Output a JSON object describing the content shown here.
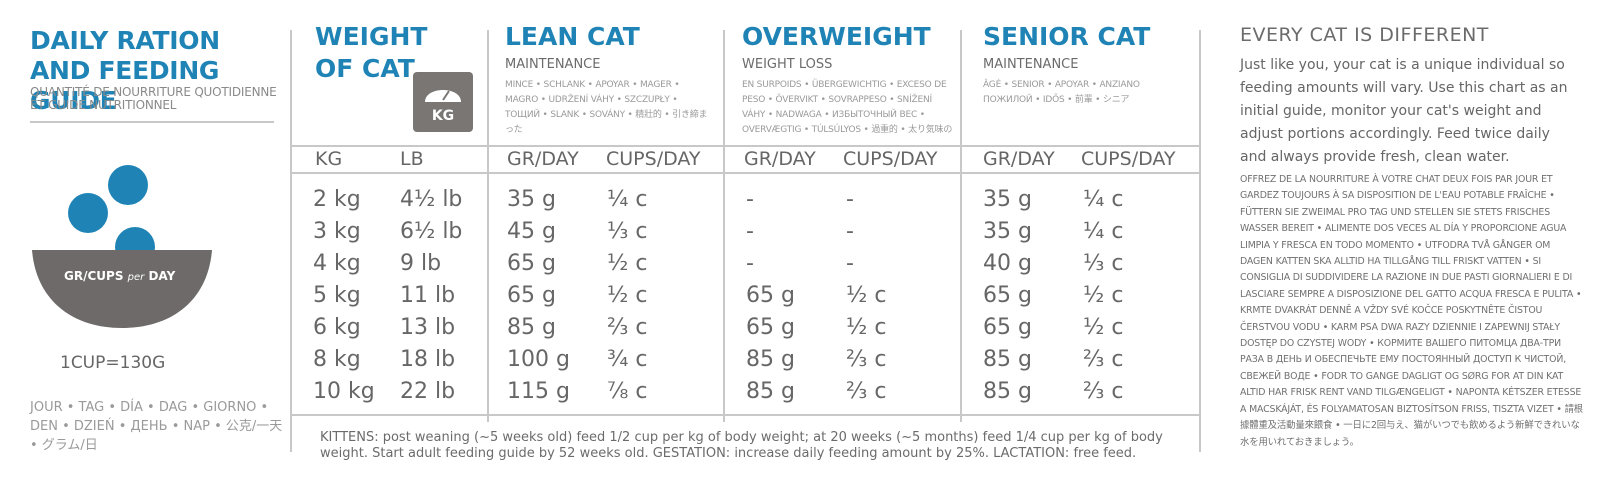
{
  "left": {
    "title": "DAILY RATION AND FEEDING GUIDE",
    "subtitle": "QUANTITÉ DE NOURRITURE QUOTIDIENNE ET GUIDE NUTRITIONNEL",
    "bowl_label": "GR/CUPS",
    "bowl_label_per": "per",
    "bowl_label_day": "DAY",
    "cup_note": "1CUP=130G",
    "days": "JOUR • TAG • DÍA • DAG • GIORNO • DEN • DZIEŃ • ДЕНЬ • NAP • 公克/一天 • グラム/日"
  },
  "weight": {
    "title_line1": "WEIGHT",
    "title_line2": "OF CAT",
    "scale_label": "KG",
    "unit_kg": "KG",
    "unit_lb": "LB"
  },
  "lean": {
    "title": "LEAN CAT",
    "sub": "MAINTENANCE",
    "langs": "MINCE • SCHLANK • APOYAR • MAGER • MAGRO • UDRŽENÍ VÁHY • SZCZUPŁY • ТОЩИЙ • SLANK • SOVÁNY • 精壯的 • 引き締まった",
    "unit_gr": "GR/DAY",
    "unit_cups": "CUPS/DAY"
  },
  "overweight": {
    "title": "OVERWEIGHT",
    "sub": "WEIGHT LOSS",
    "langs": "EN SURPOIDS • ÜBERGEWICHTIG • EXCESO DE PESO • ÖVERVIKT • SOVRAPPESO • SNÍŽENÍ VÁHY • NADWAGA • ИЗБЫТОЧНЫЙ ВЕС • OVERVÆGTIG • TÚLSÚLYOS • 過重的 • 太り気味の",
    "unit_gr": "GR/DAY",
    "unit_cups": "CUPS/DAY"
  },
  "senior": {
    "title": "SENIOR CAT",
    "sub": "MAINTENANCE",
    "langs": "ÂGÉ • SENIOR • APOYAR • ANZIANO ПОЖИЛОЙ • IDŐS • 前輩 • シニア",
    "unit_gr": "GR/DAY",
    "unit_cups": "CUPS/DAY"
  },
  "rows": [
    {
      "kg": "2 kg",
      "lb": "4½ lb",
      "lean_g": "35 g",
      "lean_c": "¼ c",
      "over_g": "-",
      "over_c": "-",
      "senior_g": "35 g",
      "senior_c": "¼ c"
    },
    {
      "kg": "3 kg",
      "lb": "6½ lb",
      "lean_g": "45 g",
      "lean_c": "⅓ c",
      "over_g": "-",
      "over_c": "-",
      "senior_g": "35 g",
      "senior_c": "¼ c"
    },
    {
      "kg": "4 kg",
      "lb": "9 lb",
      "lean_g": "65 g",
      "lean_c": "½ c",
      "over_g": "-",
      "over_c": "-",
      "senior_g": "40 g",
      "senior_c": "⅓ c"
    },
    {
      "kg": "5 kg",
      "lb": "11 lb",
      "lean_g": "65 g",
      "lean_c": "½ c",
      "over_g": "65 g",
      "over_c": "½ c",
      "senior_g": "65 g",
      "senior_c": "½ c"
    },
    {
      "kg": "6 kg",
      "lb": "13 lb",
      "lean_g": "85 g",
      "lean_c": "⅔ c",
      "over_g": "65 g",
      "over_c": "½ c",
      "senior_g": "65 g",
      "senior_c": "½ c"
    },
    {
      "kg": "8 kg",
      "lb": "18 lb",
      "lean_g": "100 g",
      "lean_c": "¾ c",
      "over_g": "85 g",
      "over_c": "⅔ c",
      "senior_g": "85 g",
      "senior_c": "⅔ c"
    },
    {
      "kg": "10 kg",
      "lb": "22 lb",
      "lean_g": "115 g",
      "lean_c": "⅞ c",
      "over_g": "85 g",
      "over_c": "⅔ c",
      "senior_g": "85 g",
      "senior_c": "⅔ c"
    }
  ],
  "kittens": "KITTENS: post weaning (~5 weeks old) feed 1/2 cup per kg of body weight; at 20 weeks (~5 months) feed 1/4 cup per kg of body weight. Start adult feeding guide by 52 weeks old. GESTATION: increase daily feeding amount by 25%. LACTATION: free feed.",
  "right": {
    "title": "EVERY CAT IS DIFFERENT",
    "body": "Just like you, your cat is a unique individual so feeding amounts will vary. Use this chart as an initial guide, monitor your cat's weight and adjust portions accordingly. Feed twice daily and always provide fresh, clean water.",
    "multilang": "OFFREZ DE LA NOURRITURE À VOTRE CHAT DEUX FOIS PAR JOUR ET GARDEZ TOUJOURS À SA DISPOSITION DE L'EAU POTABLE FRAÎCHE • FÜTTERN SIE ZWEIMAL PRO TAG UND STELLEN SIE STETS FRISCHES WASSER BEREIT • ALIMENTE DOS VECES AL DÍA Y PROPORCIONE AGUA LIMPIA Y FRESCA EN TODO MOMENTO • UTFODRA TVÅ GÅNGER OM DAGEN KATTEN SKA ALLTID HA TILLGÅNG TILL FRISKT VATTEN • SI CONSIGLIA DI SUDDIVIDERE LA RAZIONE IN DUE PASTI GIORNALIERI E DI LASCIARE SEMPRE A DISPOSIZIONE DEL GATTO ACQUA FRESCA E PULITA • KRMTE DVAKRÁT DENNĚ A VŽDY SVÉ KOČCE POSKYTNĚTE ČISTOU ČERSTVOU VODU • KARM PSA DWA RAZY DZIENNIE I ZAPEWNIJ STAŁY DOSTĘP DO CZYSTEJ WODY • КОРМИТЕ ВАШЕГО ПИТОМЦА ДВА-ТРИ РАЗА В ДЕНЬ И ОБЕСПЕЧЬТЕ ЕМУ ПОСТОЯННЫЙ ДОСТУП К ЧИСТОЙ, СВЕЖЕЙ ВОДЕ • FODR TO GANGE DAGLIGT OG SØRG FOR AT DIN KAT ALTID HAR FRISK RENT VAND TILGÆNGELIGT • NAPONTA KÉTSZER ETESSE A MACSKÁJÁT, ÉS FOLYAMATOSAN BIZTOSÍTSON FRISS, TISZTA VIZET • 請根據體重及活動量來餵食 • 一日に2回与え、猫がいつでも飲めるよう新鮮できれいな水を用いれておきましょう。"
  },
  "colors": {
    "accent": "#1f84b5",
    "bowl": "#6e6a6a",
    "scale": "#7a7674",
    "text": "#666666",
    "rule": "#c8c8c8"
  }
}
